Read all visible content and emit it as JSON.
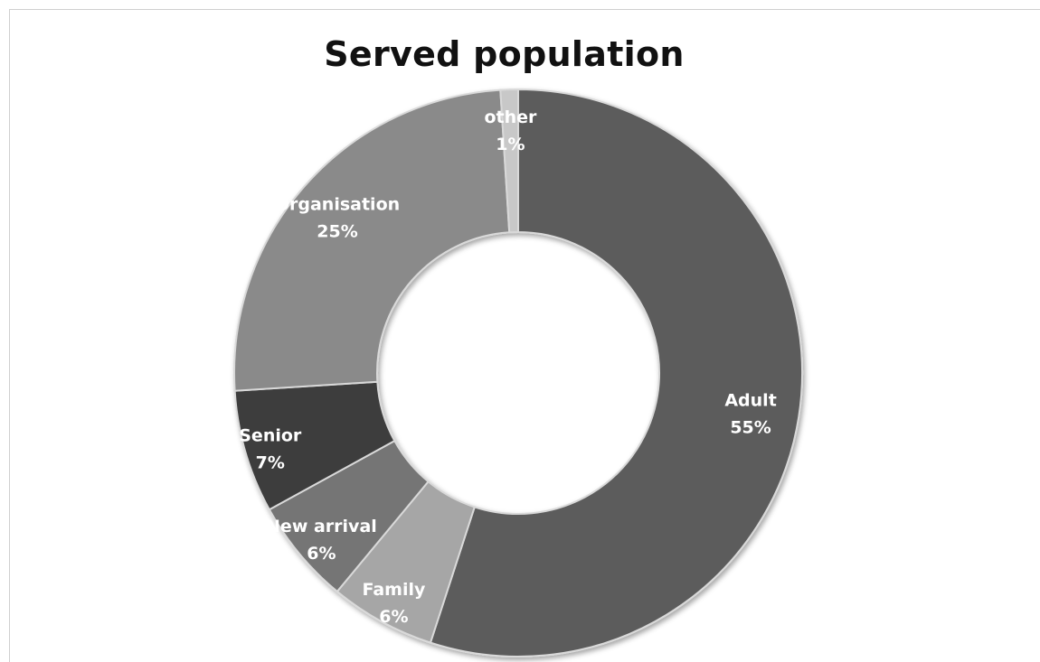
{
  "chart_data": {
    "type": "pie",
    "variant": "doughnut",
    "title": "Served population",
    "categories": [
      "Adult",
      "Family",
      "New arrival",
      "Senior",
      "Organisation",
      "other"
    ],
    "values": [
      55,
      6,
      6,
      7,
      25,
      1
    ],
    "labels": [
      "55%",
      "6%",
      "6%",
      "7%",
      "25%",
      "1%"
    ],
    "colors": [
      "#5b5b5b",
      "#a6a6a6",
      "#747474",
      "#3c3c3c",
      "#8a8a8a",
      "#c8c8c8"
    ],
    "legend": "none",
    "data_labels": "inside"
  }
}
